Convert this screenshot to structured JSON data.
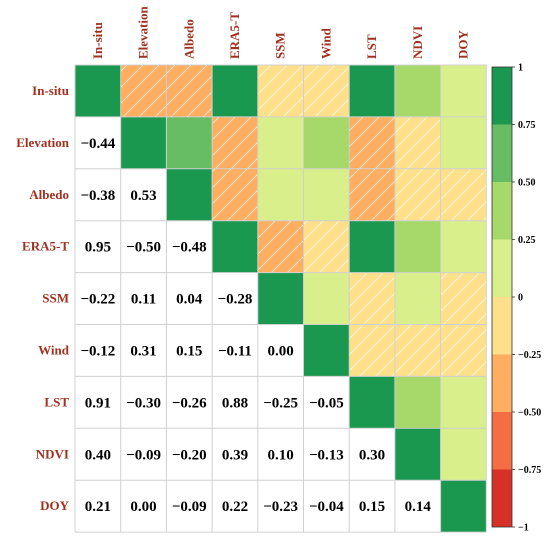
{
  "chart_data": {
    "type": "heatmap",
    "title": "",
    "variables": [
      "In-situ",
      "Elevation",
      "Albedo",
      "ERA5-T",
      "SSM",
      "Wind",
      "LST",
      "NDVI",
      "DOY"
    ],
    "matrix": [
      [
        1.0,
        -0.44,
        -0.38,
        0.95,
        -0.22,
        -0.12,
        0.91,
        0.4,
        0.21
      ],
      [
        -0.44,
        1.0,
        0.53,
        -0.5,
        0.11,
        0.31,
        -0.3,
        -0.09,
        0.0
      ],
      [
        -0.38,
        0.53,
        1.0,
        -0.48,
        0.04,
        0.15,
        -0.26,
        -0.2,
        -0.09
      ],
      [
        0.95,
        -0.5,
        -0.48,
        1.0,
        -0.28,
        -0.11,
        0.88,
        0.39,
        0.22
      ],
      [
        -0.22,
        0.11,
        0.04,
        -0.28,
        1.0,
        0.0,
        -0.25,
        0.1,
        -0.23
      ],
      [
        -0.12,
        0.31,
        0.15,
        -0.11,
        0.0,
        1.0,
        -0.05,
        -0.13,
        -0.04
      ],
      [
        0.91,
        -0.3,
        -0.26,
        0.88,
        -0.25,
        -0.05,
        1.0,
        0.3,
        0.15
      ],
      [
        0.4,
        -0.09,
        -0.2,
        0.39,
        0.1,
        -0.13,
        0.3,
        1.0,
        0.14
      ],
      [
        0.21,
        0.0,
        -0.09,
        0.22,
        -0.23,
        -0.04,
        0.15,
        0.14,
        1.0
      ]
    ],
    "lower_triangle": "numbers",
    "upper_triangle": "colored cells",
    "colorbar": {
      "range": [
        -1,
        1
      ],
      "ticks": [
        "1",
        "0.75",
        "0.50",
        "0.25",
        "0",
        "−0.25",
        "−0.50",
        "−0.75",
        "−1"
      ],
      "bins": [
        {
          "from": 0.75,
          "to": 1.0,
          "color": "#1a9850"
        },
        {
          "from": 0.5,
          "to": 0.75,
          "color": "#66bd63"
        },
        {
          "from": 0.25,
          "to": 0.5,
          "color": "#a6d96a"
        },
        {
          "from": 0.0,
          "to": 0.25,
          "color": "#d9ef8b"
        },
        {
          "from": -0.25,
          "to": 0.0,
          "color": "#fee08b"
        },
        {
          "from": -0.5,
          "to": -0.25,
          "color": "#fdae61"
        },
        {
          "from": -0.75,
          "to": -0.5,
          "color": "#f46d43"
        },
        {
          "from": -1.0,
          "to": -0.75,
          "color": "#d73027"
        }
      ]
    },
    "label_color": "#a0311f"
  }
}
